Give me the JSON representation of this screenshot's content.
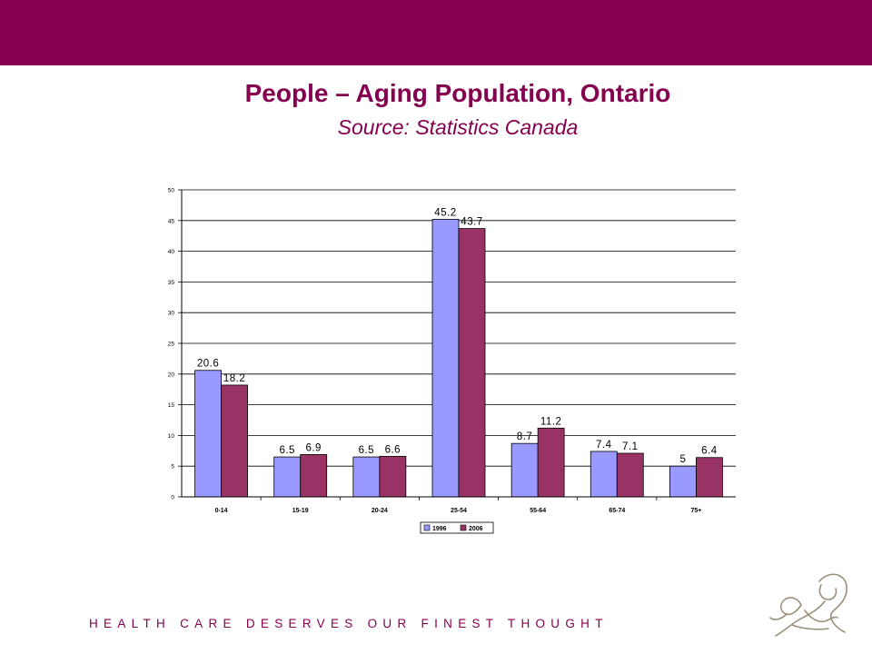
{
  "slide": {
    "title": "People – Aging Population, Ontario",
    "subtitle": "Source: Statistics Canada",
    "tagline": "HEALTH CARE DESERVES OUR FINEST THOUGHT",
    "colors": {
      "brand": "#860050",
      "series_1996": "#9999ff",
      "series_2006": "#993366"
    },
    "logo_icon": "mother-and-child-icon"
  },
  "chart_data": {
    "type": "bar",
    "categories": [
      "0-14",
      "15-19",
      "20-24",
      "25-54",
      "55-64",
      "65-74",
      "75+"
    ],
    "series": [
      {
        "name": "1996",
        "values": [
          20.6,
          6.5,
          6.5,
          45.2,
          8.7,
          7.4,
          5
        ],
        "color": "#9999ff"
      },
      {
        "name": "2006",
        "values": [
          18.2,
          6.9,
          6.6,
          43.7,
          11.2,
          7.1,
          6.4
        ],
        "color": "#993366"
      }
    ],
    "ylim": [
      0,
      50
    ],
    "yticks": [
      0,
      5,
      10,
      15,
      20,
      25,
      30,
      35,
      40,
      45,
      50
    ],
    "grid": true,
    "legend": "bottom-center"
  }
}
